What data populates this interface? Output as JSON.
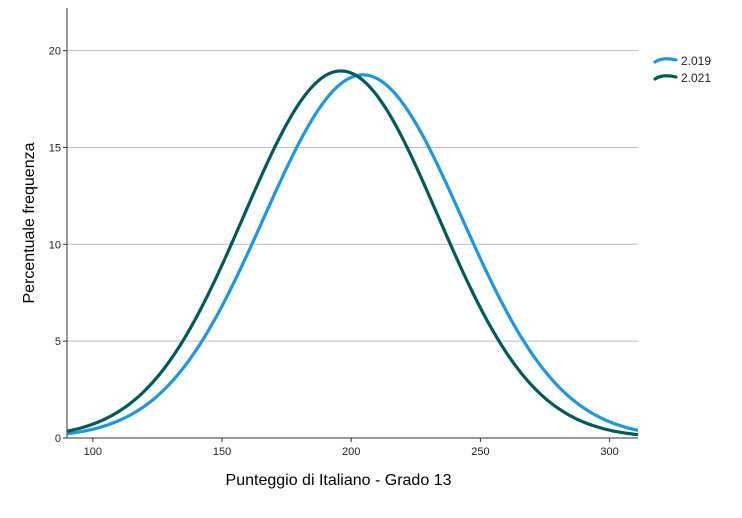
{
  "chart_data": {
    "type": "line",
    "title": "",
    "xlabel": "Punteggio di Italiano - Grado 13",
    "ylabel": "Percentuale frequenza",
    "xlim": [
      90,
      311
    ],
    "ylim": [
      0,
      22.2
    ],
    "x_ticks": [
      100,
      150,
      200,
      250,
      300
    ],
    "y_ticks": [
      0,
      5,
      10,
      15,
      20
    ],
    "grid": "horizontal",
    "legend_position": "right",
    "series": [
      {
        "name": "2.019",
        "color": "#1f96e0",
        "curve": "normal",
        "mean": 204.5,
        "sd": 38.3,
        "peak": 18.75
      },
      {
        "name": "2.021",
        "color": "#005a5a",
        "curve": "normal",
        "mean": 196,
        "sd": 37.5,
        "peak": 18.95
      }
    ]
  }
}
